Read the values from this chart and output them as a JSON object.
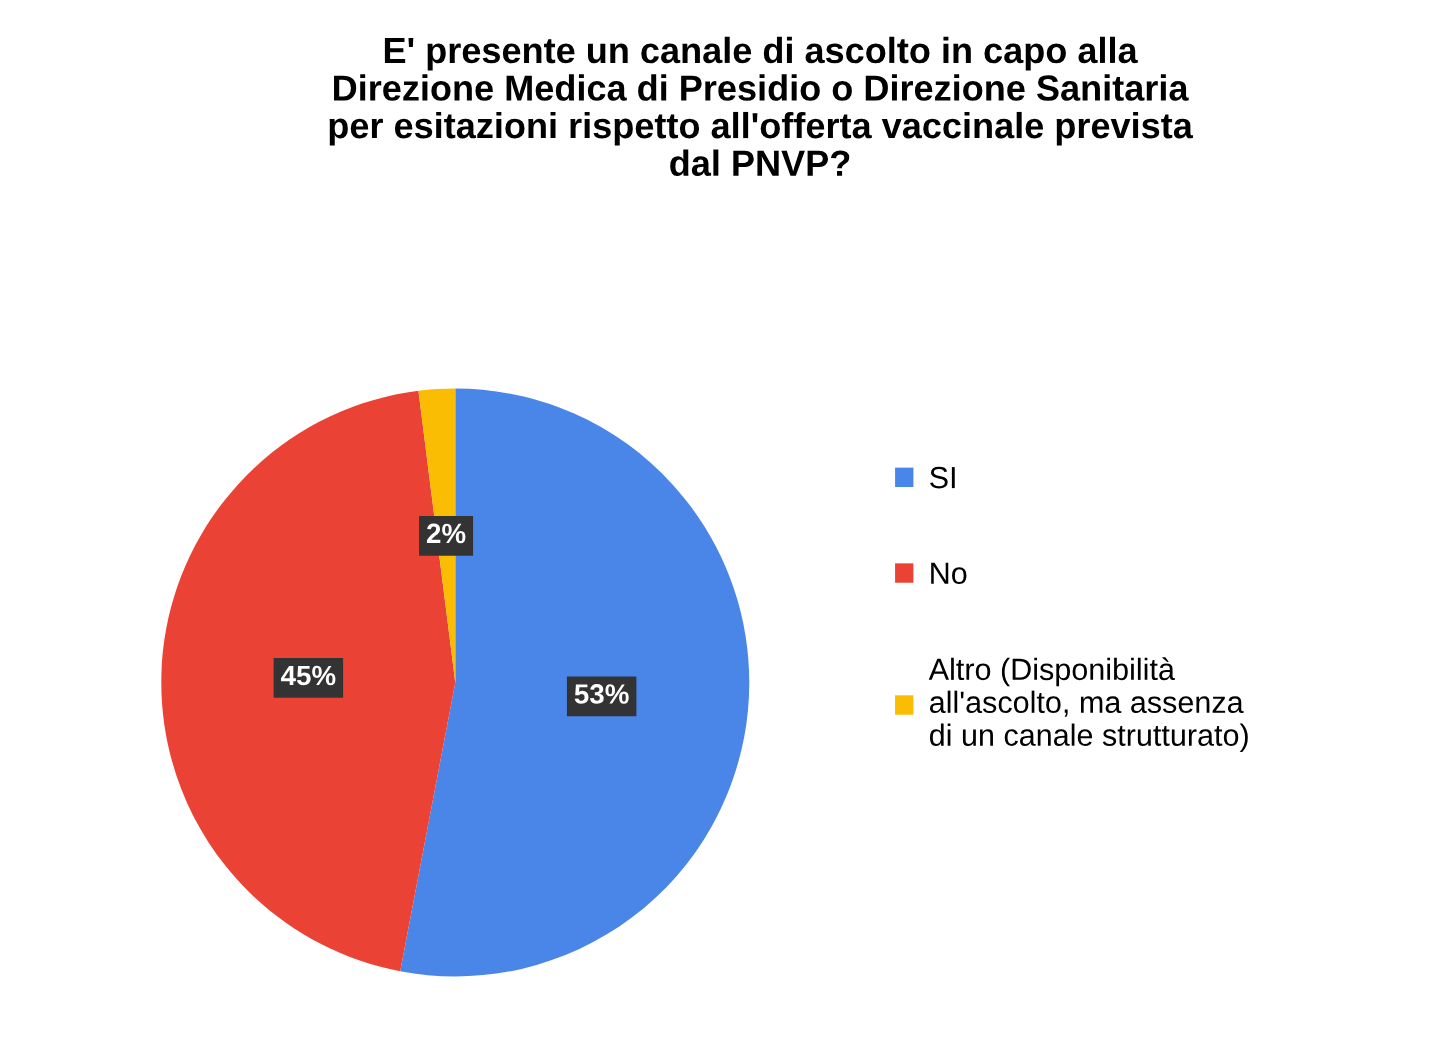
{
  "chart_data": {
    "type": "pie",
    "title": "E' presente un canale di ascolto in capo alla\nDirezione Medica di Presidio o Direzione Sanitaria\nper esitazioni rispetto all'offerta vaccinale prevista\ndal PNVP?",
    "categories": [
      "SI",
      "No",
      "Altro (Disponibilità\nall'ascolto, ma assenza\ndi un canale strutturato)"
    ],
    "values": [
      53,
      45,
      2
    ],
    "colors": [
      "#4a86e8",
      "#ea4335",
      "#fbbc04"
    ],
    "value_labels": [
      "53%",
      "45%",
      "2%"
    ],
    "legend": "right"
  }
}
